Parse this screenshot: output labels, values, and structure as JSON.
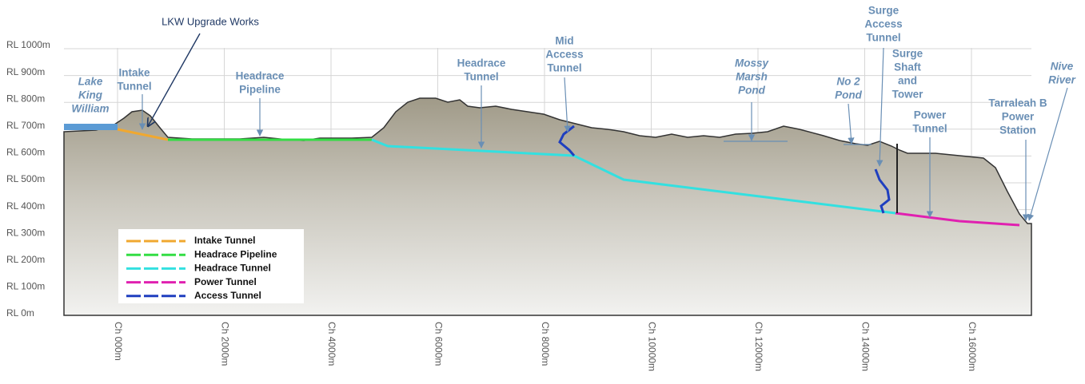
{
  "annotation": "LKW Upgrade Works",
  "levels": [
    "RL 1000m",
    "RL 900m",
    "RL 800m",
    "RL 700m",
    "RL 600m",
    "RL 500m",
    "RL 400m",
    "RL 300m",
    "RL 200m",
    "RL 100m",
    "RL 0m"
  ],
  "chainages": [
    "Ch 000m",
    "Ch 2000m",
    "Ch 4000m",
    "Ch 6000m",
    "Ch 8000m",
    "Ch 10000m",
    "Ch 12000m",
    "Ch 14000m",
    "Ch 16000m"
  ],
  "labels": [
    [
      "Lake",
      "King",
      "William"
    ],
    [
      "Intake",
      "Tunnel"
    ],
    [
      "Headrace",
      "Pipeline"
    ],
    [
      "Headrace",
      "Tunnel"
    ],
    [
      "Mid",
      "Access",
      "Tunnel"
    ],
    [
      "Mossy",
      "Marsh",
      "Pond"
    ],
    [
      "No 2",
      "Pond"
    ],
    [
      "Surge",
      "Access",
      "Tunnel"
    ],
    [
      "Surge",
      "Shaft",
      "and",
      "Tower"
    ],
    [
      "Power",
      "Tunnel"
    ],
    [
      "Tarraleah B",
      "Power",
      "Station"
    ],
    [
      "Nive",
      "River"
    ]
  ],
  "legend": [
    "Intake Tunnel",
    "Headrace Pipeline",
    "Headrace Tunnel",
    "Power Tunnel",
    "Access Tunnel"
  ]
}
